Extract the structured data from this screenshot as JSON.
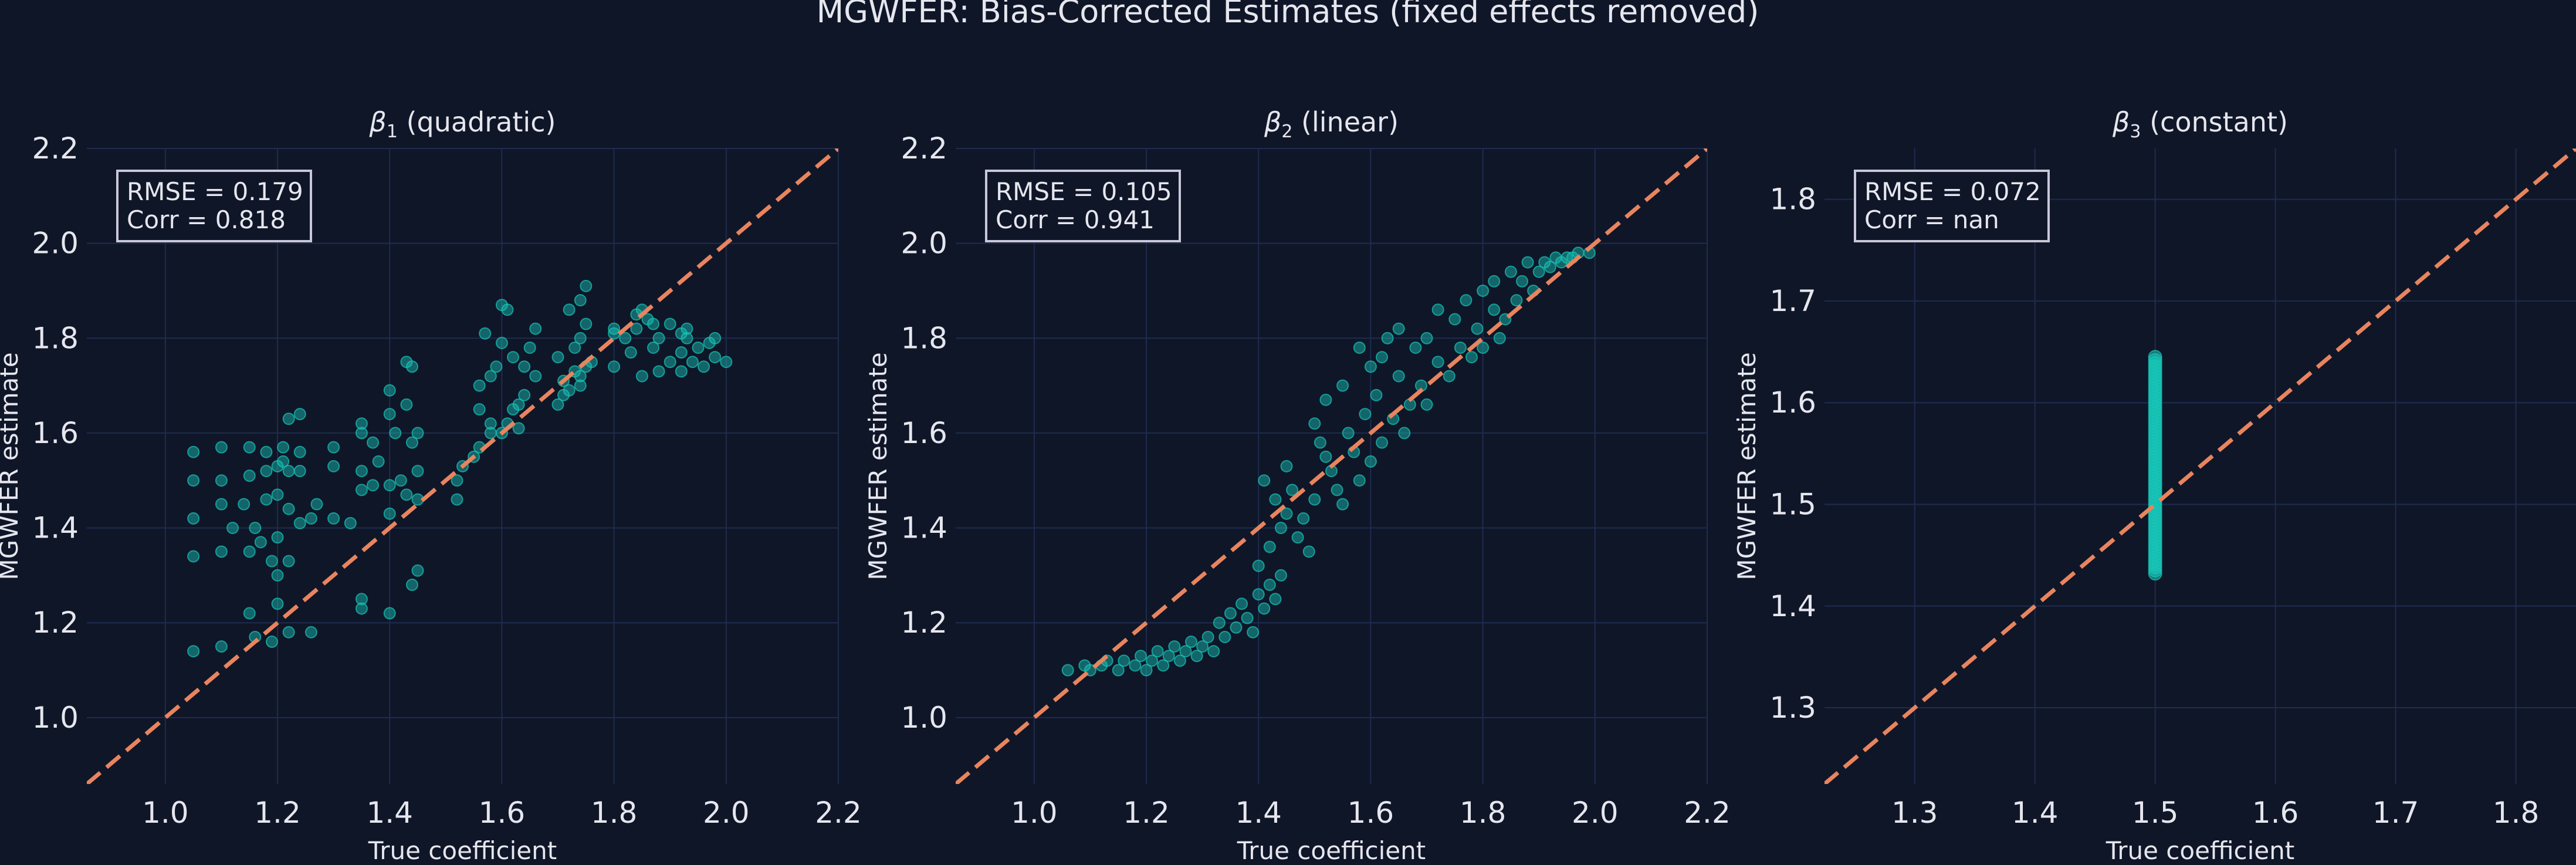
{
  "figure_title": "MGWFER: Bias-Corrected Estimates (fixed effects removed)",
  "colors": {
    "background": "#0f1628",
    "grid": "#1f2c4e",
    "text": "#e6e6ee",
    "points": "#18c6b8",
    "identity_line": "#e8845e",
    "annotation_border": "#c8c8d8"
  },
  "chart_data": [
    {
      "type": "scatter",
      "title_symbol": "β",
      "title_subscript": "1",
      "title_rest": " (quadratic)",
      "xlabel": "True coefficient",
      "ylabel": "MGWFER estimate",
      "xlim": [
        0.86,
        2.2
      ],
      "ylim": [
        0.86,
        2.2
      ],
      "xticks": [
        1.0,
        1.2,
        1.4,
        1.6,
        1.8,
        2.0,
        2.2
      ],
      "yticks": [
        1.0,
        1.2,
        1.4,
        1.6,
        1.8,
        2.0,
        2.2
      ],
      "tick_decimals": 1,
      "grid": true,
      "reference_line": "y = x",
      "annotation": [
        "RMSE = 0.179",
        "Corr = 0.818"
      ],
      "points": [
        [
          1.05,
          1.14
        ],
        [
          1.1,
          1.15
        ],
        [
          1.16,
          1.17
        ],
        [
          1.19,
          1.16
        ],
        [
          1.22,
          1.18
        ],
        [
          1.26,
          1.18
        ],
        [
          1.15,
          1.22
        ],
        [
          1.2,
          1.24
        ],
        [
          1.35,
          1.23
        ],
        [
          1.35,
          1.25
        ],
        [
          1.4,
          1.22
        ],
        [
          1.44,
          1.28
        ],
        [
          1.45,
          1.31
        ],
        [
          1.05,
          1.34
        ],
        [
          1.1,
          1.35
        ],
        [
          1.15,
          1.35
        ],
        [
          1.19,
          1.33
        ],
        [
          1.2,
          1.3
        ],
        [
          1.22,
          1.33
        ],
        [
          1.17,
          1.37
        ],
        [
          1.2,
          1.38
        ],
        [
          1.12,
          1.4
        ],
        [
          1.16,
          1.4
        ],
        [
          1.24,
          1.41
        ],
        [
          1.26,
          1.42
        ],
        [
          1.3,
          1.42
        ],
        [
          1.33,
          1.41
        ],
        [
          1.05,
          1.42
        ],
        [
          1.1,
          1.45
        ],
        [
          1.14,
          1.45
        ],
        [
          1.18,
          1.46
        ],
        [
          1.2,
          1.47
        ],
        [
          1.22,
          1.44
        ],
        [
          1.27,
          1.45
        ],
        [
          1.35,
          1.48
        ],
        [
          1.37,
          1.49
        ],
        [
          1.4,
          1.49
        ],
        [
          1.43,
          1.47
        ],
        [
          1.45,
          1.46
        ],
        [
          1.4,
          1.43
        ],
        [
          1.05,
          1.5
        ],
        [
          1.1,
          1.5
        ],
        [
          1.15,
          1.51
        ],
        [
          1.18,
          1.52
        ],
        [
          1.2,
          1.53
        ],
        [
          1.22,
          1.52
        ],
        [
          1.21,
          1.54
        ],
        [
          1.24,
          1.52
        ],
        [
          1.3,
          1.53
        ],
        [
          1.35,
          1.52
        ],
        [
          1.38,
          1.54
        ],
        [
          1.42,
          1.5
        ],
        [
          1.45,
          1.52
        ],
        [
          1.05,
          1.56
        ],
        [
          1.1,
          1.57
        ],
        [
          1.15,
          1.57
        ],
        [
          1.18,
          1.56
        ],
        [
          1.21,
          1.57
        ],
        [
          1.24,
          1.56
        ],
        [
          1.3,
          1.57
        ],
        [
          1.35,
          1.6
        ],
        [
          1.37,
          1.58
        ],
        [
          1.41,
          1.6
        ],
        [
          1.44,
          1.58
        ],
        [
          1.45,
          1.6
        ],
        [
          1.22,
          1.63
        ],
        [
          1.24,
          1.64
        ],
        [
          1.35,
          1.62
        ],
        [
          1.4,
          1.64
        ],
        [
          1.43,
          1.66
        ],
        [
          1.4,
          1.69
        ],
        [
          1.43,
          1.75
        ],
        [
          1.44,
          1.74
        ],
        [
          1.52,
          1.46
        ],
        [
          1.52,
          1.5
        ],
        [
          1.53,
          1.53
        ],
        [
          1.55,
          1.55
        ],
        [
          1.56,
          1.57
        ],
        [
          1.58,
          1.6
        ],
        [
          1.58,
          1.62
        ],
        [
          1.6,
          1.6
        ],
        [
          1.61,
          1.62
        ],
        [
          1.63,
          1.61
        ],
        [
          1.62,
          1.65
        ],
        [
          1.63,
          1.66
        ],
        [
          1.64,
          1.68
        ],
        [
          1.56,
          1.65
        ],
        [
          1.56,
          1.7
        ],
        [
          1.58,
          1.72
        ],
        [
          1.59,
          1.74
        ],
        [
          1.6,
          1.87
        ],
        [
          1.61,
          1.86
        ],
        [
          1.62,
          1.76
        ],
        [
          1.57,
          1.81
        ],
        [
          1.6,
          1.79
        ],
        [
          1.65,
          1.78
        ],
        [
          1.66,
          1.72
        ],
        [
          1.64,
          1.74
        ],
        [
          1.66,
          1.82
        ],
        [
          1.7,
          1.66
        ],
        [
          1.71,
          1.68
        ],
        [
          1.71,
          1.71
        ],
        [
          1.72,
          1.69
        ],
        [
          1.73,
          1.73
        ],
        [
          1.74,
          1.72
        ],
        [
          1.74,
          1.7
        ],
        [
          1.75,
          1.74
        ],
        [
          1.76,
          1.75
        ],
        [
          1.73,
          1.78
        ],
        [
          1.74,
          1.8
        ],
        [
          1.75,
          1.83
        ],
        [
          1.74,
          1.88
        ],
        [
          1.75,
          1.91
        ],
        [
          1.72,
          1.86
        ],
        [
          1.7,
          1.76
        ],
        [
          1.8,
          1.81
        ],
        [
          1.82,
          1.8
        ],
        [
          1.84,
          1.82
        ],
        [
          1.84,
          1.85
        ],
        [
          1.86,
          1.84
        ],
        [
          1.85,
          1.86
        ],
        [
          1.87,
          1.83
        ],
        [
          1.88,
          1.8
        ],
        [
          1.87,
          1.78
        ],
        [
          1.9,
          1.83
        ],
        [
          1.92,
          1.81
        ],
        [
          1.93,
          1.8
        ],
        [
          1.95,
          1.78
        ],
        [
          1.93,
          1.82
        ],
        [
          1.8,
          1.74
        ],
        [
          1.83,
          1.77
        ],
        [
          1.85,
          1.72
        ],
        [
          1.88,
          1.73
        ],
        [
          1.9,
          1.75
        ],
        [
          1.92,
          1.73
        ],
        [
          1.94,
          1.75
        ],
        [
          1.96,
          1.74
        ],
        [
          1.98,
          1.76
        ],
        [
          2.0,
          1.75
        ],
        [
          1.97,
          1.79
        ],
        [
          1.98,
          1.8
        ],
        [
          1.92,
          1.77
        ],
        [
          1.8,
          1.82
        ]
      ]
    },
    {
      "type": "scatter",
      "title_symbol": "β",
      "title_subscript": "2",
      "title_rest": " (linear)",
      "xlabel": "True coefficient",
      "ylabel": "MGWFER estimate",
      "xlim": [
        0.86,
        2.2
      ],
      "ylim": [
        0.86,
        2.2
      ],
      "xticks": [
        1.0,
        1.2,
        1.4,
        1.6,
        1.8,
        2.0,
        2.2
      ],
      "yticks": [
        1.0,
        1.2,
        1.4,
        1.6,
        1.8,
        2.0,
        2.2
      ],
      "tick_decimals": 1,
      "grid": true,
      "reference_line": "y = x",
      "annotation": [
        "RMSE = 0.105",
        "Corr = 0.941"
      ],
      "points": [
        [
          1.06,
          1.1
        ],
        [
          1.09,
          1.11
        ],
        [
          1.1,
          1.1
        ],
        [
          1.12,
          1.11
        ],
        [
          1.13,
          1.12
        ],
        [
          1.15,
          1.1
        ],
        [
          1.16,
          1.12
        ],
        [
          1.18,
          1.11
        ],
        [
          1.19,
          1.13
        ],
        [
          1.2,
          1.1
        ],
        [
          1.21,
          1.12
        ],
        [
          1.22,
          1.14
        ],
        [
          1.23,
          1.11
        ],
        [
          1.24,
          1.13
        ],
        [
          1.25,
          1.15
        ],
        [
          1.26,
          1.12
        ],
        [
          1.27,
          1.14
        ],
        [
          1.28,
          1.16
        ],
        [
          1.29,
          1.13
        ],
        [
          1.3,
          1.15
        ],
        [
          1.31,
          1.17
        ],
        [
          1.32,
          1.14
        ],
        [
          1.33,
          1.2
        ],
        [
          1.34,
          1.17
        ],
        [
          1.35,
          1.22
        ],
        [
          1.36,
          1.19
        ],
        [
          1.37,
          1.24
        ],
        [
          1.38,
          1.21
        ],
        [
          1.39,
          1.18
        ],
        [
          1.4,
          1.26
        ],
        [
          1.41,
          1.23
        ],
        [
          1.42,
          1.28
        ],
        [
          1.43,
          1.25
        ],
        [
          1.44,
          1.3
        ],
        [
          1.4,
          1.32
        ],
        [
          1.42,
          1.36
        ],
        [
          1.44,
          1.4
        ],
        [
          1.45,
          1.43
        ],
        [
          1.43,
          1.46
        ],
        [
          1.41,
          1.5
        ],
        [
          1.45,
          1.53
        ],
        [
          1.46,
          1.48
        ],
        [
          1.47,
          1.38
        ],
        [
          1.48,
          1.42
        ],
        [
          1.49,
          1.35
        ],
        [
          1.5,
          1.46
        ],
        [
          1.5,
          1.62
        ],
        [
          1.51,
          1.58
        ],
        [
          1.52,
          1.55
        ],
        [
          1.52,
          1.67
        ],
        [
          1.53,
          1.52
        ],
        [
          1.54,
          1.48
        ],
        [
          1.55,
          1.45
        ],
        [
          1.55,
          1.7
        ],
        [
          1.56,
          1.6
        ],
        [
          1.57,
          1.56
        ],
        [
          1.58,
          1.5
        ],
        [
          1.58,
          1.78
        ],
        [
          1.59,
          1.64
        ],
        [
          1.6,
          1.54
        ],
        [
          1.61,
          1.68
        ],
        [
          1.62,
          1.58
        ],
        [
          1.63,
          1.8
        ],
        [
          1.64,
          1.63
        ],
        [
          1.65,
          1.72
        ],
        [
          1.66,
          1.6
        ],
        [
          1.6,
          1.74
        ],
        [
          1.62,
          1.76
        ],
        [
          1.65,
          1.82
        ],
        [
          1.67,
          1.66
        ],
        [
          1.68,
          1.78
        ],
        [
          1.69,
          1.7
        ],
        [
          1.7,
          1.8
        ],
        [
          1.7,
          1.66
        ],
        [
          1.72,
          1.75
        ],
        [
          1.72,
          1.86
        ],
        [
          1.74,
          1.72
        ],
        [
          1.75,
          1.84
        ],
        [
          1.76,
          1.78
        ],
        [
          1.77,
          1.88
        ],
        [
          1.78,
          1.76
        ],
        [
          1.79,
          1.82
        ],
        [
          1.8,
          1.9
        ],
        [
          1.8,
          1.78
        ],
        [
          1.82,
          1.86
        ],
        [
          1.82,
          1.92
        ],
        [
          1.84,
          1.84
        ],
        [
          1.85,
          1.94
        ],
        [
          1.86,
          1.88
        ],
        [
          1.87,
          1.92
        ],
        [
          1.88,
          1.96
        ],
        [
          1.89,
          1.9
        ],
        [
          1.9,
          1.94
        ],
        [
          1.91,
          1.96
        ],
        [
          1.92,
          1.95
        ],
        [
          1.93,
          1.97
        ],
        [
          1.94,
          1.96
        ],
        [
          1.95,
          1.97
        ],
        [
          1.96,
          1.97
        ],
        [
          1.97,
          1.98
        ],
        [
          1.99,
          1.98
        ],
        [
          1.83,
          1.8
        ]
      ]
    },
    {
      "type": "scatter",
      "title_symbol": "β",
      "title_subscript": "3",
      "title_rest": " (constant)",
      "xlabel": "True coefficient",
      "ylabel": "MGWFER estimate",
      "xlim": [
        1.225,
        1.85
      ],
      "ylim": [
        1.225,
        1.85
      ],
      "xticks": [
        1.3,
        1.4,
        1.5,
        1.6,
        1.7,
        1.8
      ],
      "yticks": [
        1.3,
        1.4,
        1.5,
        1.6,
        1.7,
        1.8
      ],
      "tick_decimals": 1,
      "grid": true,
      "reference_line": "y = x",
      "annotation": [
        "RMSE = 0.072",
        "Corr = nan"
      ],
      "points": "vertical",
      "vertical_x": 1.5,
      "vertical_range": [
        1.432,
        1.645
      ]
    }
  ]
}
